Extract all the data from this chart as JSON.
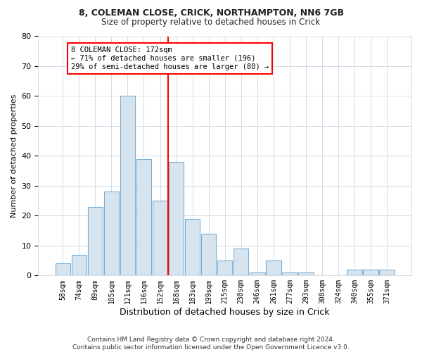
{
  "title1": "8, COLEMAN CLOSE, CRICK, NORTHAMPTON, NN6 7GB",
  "title2": "Size of property relative to detached houses in Crick",
  "xlabel": "Distribution of detached houses by size in Crick",
  "ylabel": "Number of detached properties",
  "footer": "Contains HM Land Registry data © Crown copyright and database right 2024.\nContains public sector information licensed under the Open Government Licence v3.0.",
  "bin_labels": [
    "58sqm",
    "74sqm",
    "89sqm",
    "105sqm",
    "121sqm",
    "136sqm",
    "152sqm",
    "168sqm",
    "183sqm",
    "199sqm",
    "215sqm",
    "230sqm",
    "246sqm",
    "261sqm",
    "277sqm",
    "293sqm",
    "308sqm",
    "324sqm",
    "340sqm",
    "355sqm",
    "371sqm"
  ],
  "bar_heights": [
    4,
    7,
    23,
    28,
    60,
    39,
    25,
    38,
    19,
    14,
    5,
    9,
    1,
    5,
    1,
    1,
    0,
    0,
    2,
    2,
    2
  ],
  "bar_color": "#d6e4f0",
  "bar_edge_color": "#7bafd4",
  "vline_color": "red",
  "annotation_text": "8 COLEMAN CLOSE: 172sqm\n← 71% of detached houses are smaller (196)\n29% of semi-detached houses are larger (80) →",
  "annotation_box_color": "white",
  "annotation_box_edge": "red",
  "ylim": [
    0,
    80
  ],
  "yticks": [
    0,
    10,
    20,
    30,
    40,
    50,
    60,
    70,
    80
  ],
  "bg_color": "#ffffff",
  "plot_bg_color": "#ffffff",
  "grid_color": "#d0dce8",
  "title1_fontsize": 9,
  "title2_fontsize": 8.5,
  "ylabel_fontsize": 8,
  "xlabel_fontsize": 9
}
